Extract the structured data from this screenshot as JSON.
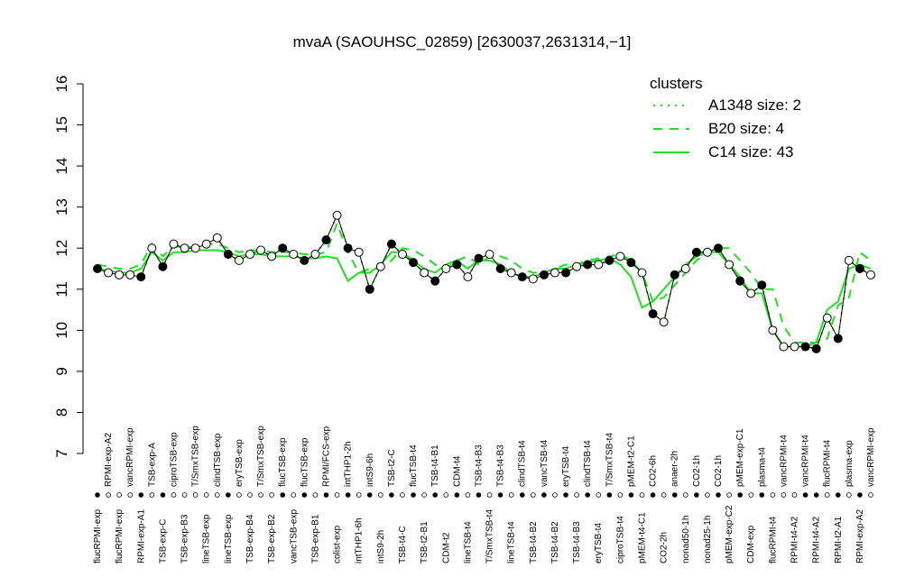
{
  "chart_data": {
    "type": "line",
    "title": "mvaA (SAOUHSC_02859) [2630037,2631314,−1]",
    "ylim": [
      7,
      16
    ],
    "yticks": [
      7,
      8,
      9,
      10,
      11,
      12,
      13,
      14,
      15,
      16
    ],
    "legend_title": "clusters",
    "legend_position": "top-right",
    "categories": [
      "flucRPMI-exp",
      "RPMI-exp-A2",
      "flucRPMI-exp",
      "vancRPMI-exp",
      "RPMI-exp-A1",
      "TSB-exp-A",
      "TSB-exp-C",
      "ciproTSB-exp",
      "TSB-exp-B3",
      "T/SmxTSB-exp",
      "lineTSB-exp",
      "clindTSB-exp",
      "lineTSB-exp",
      "eryTSB-exp",
      "TSB-exp-B4",
      "T/SmxTSB-exp",
      "TSB-exp-B2",
      "flucTSB-exp",
      "vancTSB-exp",
      "flucTSB-exp",
      "TSB-exp-B1",
      "RPMI/FCS-exp",
      "colist-exp",
      "intTHP1-2h",
      "intTHP1-6h",
      "intS9-6h",
      "intS9-2h",
      "TSB-t2-C",
      "TSB-t4-C",
      "flucTSB-t4",
      "TSB-t2-B1",
      "TSB-t4-B1",
      "CDM-t2",
      "CDM-t4",
      "lineTSB-t4",
      "TSB-t4-B3",
      "T/SmxTSB-t4",
      "TSB-t4-B3",
      "lineTSB-t4",
      "clindTSB-t4",
      "TSB-t4-B2",
      "vancTSB-t4",
      "TSB-t4-B2",
      "eryTSB-t4",
      "TSB-t4-B3",
      "clindTSB-t4",
      "eryTSB-t4",
      "T/SmxTSB-t4",
      "ciproTSB-t4",
      "pMEM-t2-C1",
      "pMEM-t4-C1",
      "CO2-6h",
      "CO2-2h",
      "anaer-2h",
      "nonad50-1h",
      "CO2-1h",
      "nonad25-1h",
      "CO2-1h",
      "pMEM-exp-C2",
      "pMEM-exp-C1",
      "CDM-exp",
      "plasma-t4",
      "flucRPMI-t4",
      "vancRPMI-t4",
      "RPMI-t4-A2",
      "vancRPMI-t4",
      "RPMI-t4-A2",
      "flucRPMI-t4",
      "RPMI-t2-A1",
      "plasma-exp",
      "RPMI-exp-A2",
      "vancRPMI-exp"
    ],
    "values": [
      11.5,
      11.4,
      11.35,
      11.35,
      11.3,
      12.0,
      11.55,
      12.1,
      12.0,
      12.0,
      12.1,
      12.25,
      11.85,
      11.7,
      11.85,
      11.95,
      11.8,
      12.0,
      11.85,
      11.7,
      11.85,
      12.2,
      12.8,
      12.0,
      11.9,
      11.0,
      11.55,
      12.1,
      11.85,
      11.65,
      11.4,
      11.2,
      11.5,
      11.6,
      11.3,
      11.75,
      11.85,
      11.5,
      11.4,
      11.3,
      11.25,
      11.35,
      11.4,
      11.4,
      11.55,
      11.6,
      11.6,
      11.7,
      11.8,
      11.65,
      11.4,
      10.4,
      10.2,
      11.35,
      11.5,
      11.9,
      11.9,
      12.0,
      11.6,
      11.2,
      10.9,
      11.1,
      10.0,
      9.6,
      9.6,
      9.6,
      9.55,
      10.3,
      9.8,
      11.7,
      11.5,
      11.35
    ],
    "marker_filled": [
      true,
      false,
      false,
      false,
      true,
      false,
      true,
      false,
      false,
      false,
      false,
      false,
      true,
      false,
      false,
      false,
      false,
      true,
      false,
      true,
      false,
      true,
      false,
      true,
      false,
      true,
      false,
      true,
      false,
      true,
      false,
      true,
      false,
      true,
      false,
      true,
      false,
      true,
      false,
      true,
      false,
      true,
      false,
      true,
      false,
      true,
      false,
      true,
      false,
      true,
      false,
      true,
      false,
      true,
      false,
      true,
      false,
      true,
      false,
      true,
      false,
      true,
      false,
      false,
      false,
      true,
      true,
      false,
      true,
      false,
      true,
      false
    ],
    "series": [
      {
        "name": "A1348 size: 2",
        "color": "#22dd22",
        "dash": "dotted",
        "values": [
          11.5,
          11.4,
          11.35,
          11.35,
          11.3,
          12.0,
          11.55,
          12.1,
          12.0,
          12.0,
          12.1,
          12.25,
          11.85,
          11.7,
          11.85,
          11.95,
          11.8,
          12.0,
          11.85,
          11.7,
          11.85,
          12.2,
          12.8,
          12.0,
          11.9,
          11.0,
          11.55,
          12.1,
          11.85,
          11.65,
          11.4,
          11.2,
          11.5,
          11.6,
          11.3,
          11.75,
          11.85,
          11.5,
          11.4,
          11.3,
          11.25,
          11.35,
          11.4,
          11.4,
          11.55,
          11.6,
          11.6,
          11.7,
          11.8,
          11.65,
          11.4,
          10.4,
          10.2,
          11.35,
          11.5,
          11.9,
          11.9,
          12.0,
          11.6,
          11.2,
          10.9,
          11.1,
          10.0,
          9.6,
          9.6,
          9.6,
          9.55,
          10.3,
          9.8,
          11.7,
          11.5,
          11.35
        ]
      },
      {
        "name": "B20 size: 4",
        "color": "#22dd22",
        "dash": "dashed",
        "values": [
          11.6,
          11.55,
          11.5,
          11.5,
          11.6,
          12.1,
          11.8,
          12.05,
          12.0,
          12.05,
          12.1,
          12.1,
          12.0,
          11.9,
          11.95,
          11.95,
          11.9,
          11.9,
          11.9,
          11.85,
          11.85,
          11.9,
          12.6,
          11.9,
          11.4,
          11.5,
          11.5,
          11.7,
          12.0,
          11.95,
          11.8,
          11.6,
          11.5,
          11.7,
          11.8,
          11.6,
          11.8,
          11.8,
          11.7,
          11.5,
          11.4,
          11.4,
          11.5,
          11.6,
          11.6,
          11.7,
          11.75,
          11.8,
          11.85,
          11.7,
          11.4,
          10.7,
          10.8,
          11.1,
          11.4,
          11.7,
          11.9,
          12.0,
          12.0,
          11.7,
          11.4,
          11.0,
          11.0,
          10.1,
          9.7,
          9.7,
          9.7,
          9.8,
          10.6,
          10.8,
          11.9,
          11.7
        ]
      },
      {
        "name": "C14 size: 43",
        "color": "#22dd22",
        "dash": "solid",
        "values": [
          11.5,
          11.45,
          11.4,
          11.4,
          11.5,
          11.9,
          11.7,
          11.9,
          11.9,
          11.95,
          11.95,
          11.95,
          11.9,
          11.8,
          11.85,
          11.85,
          11.8,
          11.8,
          11.8,
          11.75,
          11.75,
          11.8,
          11.75,
          11.2,
          11.4,
          11.4,
          11.6,
          11.9,
          11.9,
          11.7,
          11.5,
          11.4,
          11.6,
          11.7,
          11.5,
          11.7,
          11.7,
          11.6,
          11.4,
          11.3,
          11.3,
          11.4,
          11.5,
          11.5,
          11.6,
          11.65,
          11.7,
          11.75,
          11.6,
          11.3,
          10.55,
          10.7,
          11.0,
          11.3,
          11.6,
          11.8,
          11.9,
          11.9,
          11.6,
          11.3,
          10.9,
          10.9,
          10.0,
          9.6,
          9.6,
          9.6,
          9.7,
          10.5,
          10.7,
          11.5,
          11.6,
          11.5
        ]
      }
    ]
  }
}
